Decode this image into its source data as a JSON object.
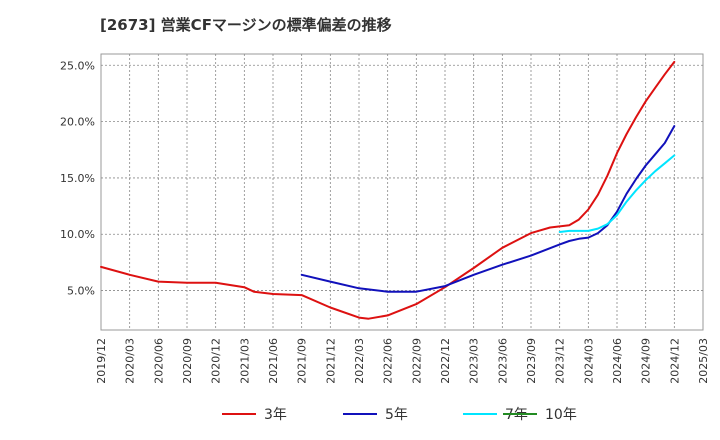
{
  "chart_data": {
    "type": "line",
    "title": "[2673]  営業CFマージンの標準偏差の推移",
    "xlabel": "",
    "ylabel": "",
    "x_ticks": [
      "2019/12",
      "2020/03",
      "2020/06",
      "2020/09",
      "2020/12",
      "2021/03",
      "2021/06",
      "2021/09",
      "2021/12",
      "2022/03",
      "2022/06",
      "2022/09",
      "2022/12",
      "2023/03",
      "2023/06",
      "2023/09",
      "2023/12",
      "2024/03",
      "2024/06",
      "2024/09",
      "2024/12",
      "2025/03"
    ],
    "y_ticks": [
      "5.0%",
      "10.0%",
      "15.0%",
      "20.0%",
      "25.0%"
    ],
    "y_tick_values": [
      5,
      10,
      15,
      20,
      25
    ],
    "ylim": [
      1.5,
      26.0
    ],
    "grid": true,
    "legend_position": "bottom",
    "series": [
      {
        "name": "3年",
        "color": "#dd1111",
        "points": [
          [
            "2019/12",
            7.1
          ],
          [
            "2020/03",
            6.4
          ],
          [
            "2020/06",
            5.8
          ],
          [
            "2020/09",
            5.7
          ],
          [
            "2020/12",
            5.7
          ],
          [
            "2021/03",
            5.3
          ],
          [
            "2021/04",
            4.9
          ],
          [
            "2021/06",
            4.7
          ],
          [
            "2021/09",
            4.6
          ],
          [
            "2021/12",
            3.5
          ],
          [
            "2022/03",
            2.6
          ],
          [
            "2022/04",
            2.5
          ],
          [
            "2022/06",
            2.8
          ],
          [
            "2022/09",
            3.8
          ],
          [
            "2022/12",
            5.3
          ],
          [
            "2023/03",
            7.0
          ],
          [
            "2023/06",
            8.8
          ],
          [
            "2023/09",
            10.1
          ],
          [
            "2023/11",
            10.6
          ],
          [
            "2023/12",
            10.7
          ],
          [
            "2024/01",
            10.8
          ],
          [
            "2024/02",
            11.3
          ],
          [
            "2024/03",
            12.2
          ],
          [
            "2024/04",
            13.5
          ],
          [
            "2024/05",
            15.2
          ],
          [
            "2024/06",
            17.2
          ],
          [
            "2024/07",
            18.9
          ],
          [
            "2024/08",
            20.4
          ],
          [
            "2024/09",
            21.8
          ],
          [
            "2024/10",
            23.0
          ],
          [
            "2024/11",
            24.2
          ],
          [
            "2024/12",
            25.3
          ]
        ]
      },
      {
        "name": "5年",
        "color": "#1111bb",
        "points": [
          [
            "2021/09",
            6.4
          ],
          [
            "2021/12",
            5.8
          ],
          [
            "2022/03",
            5.2
          ],
          [
            "2022/06",
            4.9
          ],
          [
            "2022/09",
            4.9
          ],
          [
            "2022/12",
            5.4
          ],
          [
            "2023/03",
            6.4
          ],
          [
            "2023/06",
            7.3
          ],
          [
            "2023/09",
            8.1
          ],
          [
            "2023/12",
            9.1
          ],
          [
            "2024/01",
            9.4
          ],
          [
            "2024/02",
            9.6
          ],
          [
            "2024/03",
            9.7
          ],
          [
            "2024/04",
            10.1
          ],
          [
            "2024/05",
            10.8
          ],
          [
            "2024/06",
            12.0
          ],
          [
            "2024/07",
            13.6
          ],
          [
            "2024/08",
            14.9
          ],
          [
            "2024/09",
            16.1
          ],
          [
            "2024/10",
            17.1
          ],
          [
            "2024/11",
            18.1
          ],
          [
            "2024/12",
            19.6
          ]
        ]
      },
      {
        "name": "7年",
        "color": "#00e5ff",
        "points": [
          [
            "2023/12",
            10.2
          ],
          [
            "2024/01",
            10.3
          ],
          [
            "2024/02",
            10.3
          ],
          [
            "2024/03",
            10.3
          ],
          [
            "2024/04",
            10.5
          ],
          [
            "2024/05",
            10.9
          ],
          [
            "2024/06",
            11.7
          ],
          [
            "2024/07",
            12.9
          ],
          [
            "2024/08",
            13.9
          ],
          [
            "2024/09",
            14.8
          ],
          [
            "2024/10",
            15.6
          ],
          [
            "2024/11",
            16.3
          ],
          [
            "2024/12",
            17.0
          ]
        ]
      },
      {
        "name": "10年",
        "color": "#228b22",
        "points": []
      }
    ]
  }
}
